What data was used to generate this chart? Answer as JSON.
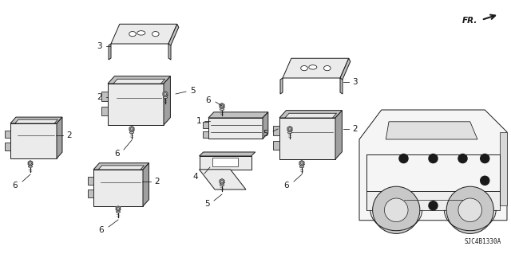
{
  "background_color": "#ffffff",
  "line_color": "#1a1a1a",
  "fr_label": "FR.",
  "part_code": "SJC4B1330A",
  "fig_width": 6.4,
  "fig_height": 3.19,
  "dpi": 100,
  "gray_fill": "#d8d8d8",
  "dark_fill": "#a0a0a0",
  "med_fill": "#c0c0c0",
  "light_fill": "#ebebeb",
  "truck_fill": "#f5f5f5"
}
